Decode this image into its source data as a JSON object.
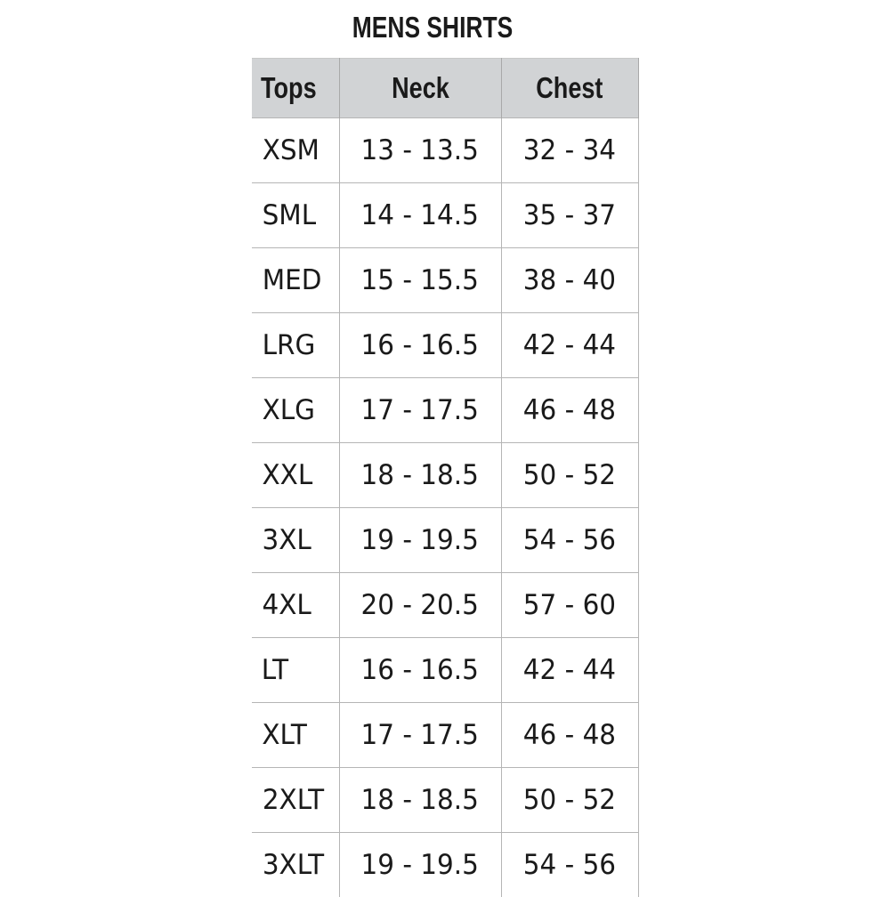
{
  "title": "MENS SHIRTS",
  "headers": [
    "Tops",
    "Neck",
    "Chest"
  ],
  "rows": [
    [
      "XSM",
      "13 - 13.5",
      "32 - 34"
    ],
    [
      "SML",
      "14 - 14.5",
      "35 - 37"
    ],
    [
      "MED",
      "15 - 15.5",
      "38 - 40"
    ],
    [
      "LRG",
      "16 - 16.5",
      "42 - 44"
    ],
    [
      "XLG",
      "17 - 17.5",
      "46 - 48"
    ],
    [
      "XXL",
      "18 - 18.5",
      "50 - 52"
    ],
    [
      "3XL",
      "19 - 19.5",
      "54 - 56"
    ],
    [
      "4XL",
      "20 - 20.5",
      "57 - 60"
    ],
    [
      "LT",
      "16 - 16.5",
      "42 - 44"
    ],
    [
      "XLT",
      "17 - 17.5",
      "46 - 48"
    ],
    [
      "2XLT",
      "18 - 18.5",
      "50 - 52"
    ],
    [
      "3XLT",
      "19 - 19.5",
      "54 - 56"
    ]
  ],
  "colors": {
    "header_bg": "#d1d3d5",
    "grid": "#b5b5b5",
    "text": "#1a1a1a"
  }
}
